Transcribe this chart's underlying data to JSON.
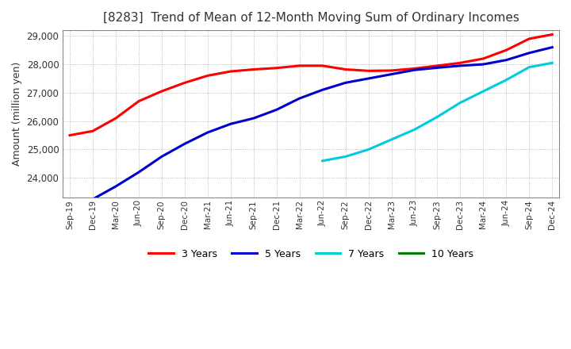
{
  "title": "[8283]  Trend of Mean of 12-Month Moving Sum of Ordinary Incomes",
  "ylabel": "Amount (million yen)",
  "ylim": [
    23300,
    29200
  ],
  "yticks": [
    24000,
    25000,
    26000,
    27000,
    28000,
    29000
  ],
  "background_color": "#ffffff",
  "plot_bg_color": "#ffffff",
  "grid_color": "#aaaaaa",
  "line_colors": {
    "3yr": "#ff0000",
    "5yr": "#0000cc",
    "7yr": "#00ccdd",
    "10yr": "#008000"
  },
  "legend_labels": [
    "3 Years",
    "5 Years",
    "7 Years",
    "10 Years"
  ],
  "x_labels": [
    "Sep-19",
    "Dec-19",
    "Mar-20",
    "Jun-20",
    "Sep-20",
    "Dec-20",
    "Mar-21",
    "Jun-21",
    "Sep-21",
    "Dec-21",
    "Mar-22",
    "Jun-22",
    "Sep-22",
    "Dec-22",
    "Mar-23",
    "Jun-23",
    "Sep-23",
    "Dec-23",
    "Mar-24",
    "Jun-24",
    "Sep-24",
    "Dec-24"
  ],
  "data_3yr": [
    25500,
    25650,
    26100,
    26700,
    27050,
    27350,
    27600,
    27750,
    27820,
    27870,
    27950,
    27950,
    27820,
    27770,
    27780,
    27850,
    27950,
    28050,
    28200,
    28500,
    28900,
    29050
  ],
  "data_5yr": [
    null,
    23250,
    23700,
    24200,
    24750,
    25200,
    25600,
    25900,
    26100,
    26400,
    26800,
    27100,
    27350,
    27500,
    27650,
    27800,
    27880,
    27950,
    28000,
    28150,
    28400,
    28600
  ],
  "data_7yr": [
    null,
    null,
    null,
    null,
    null,
    null,
    null,
    null,
    null,
    null,
    null,
    24600,
    24750,
    25000,
    25350,
    25700,
    26150,
    26650,
    27050,
    27450,
    27900,
    28050
  ],
  "data_10yr": [
    null,
    null,
    null,
    null,
    null,
    null,
    null,
    null,
    null,
    null,
    null,
    null,
    null,
    null,
    null,
    null,
    null,
    null,
    null,
    null,
    null,
    null
  ]
}
